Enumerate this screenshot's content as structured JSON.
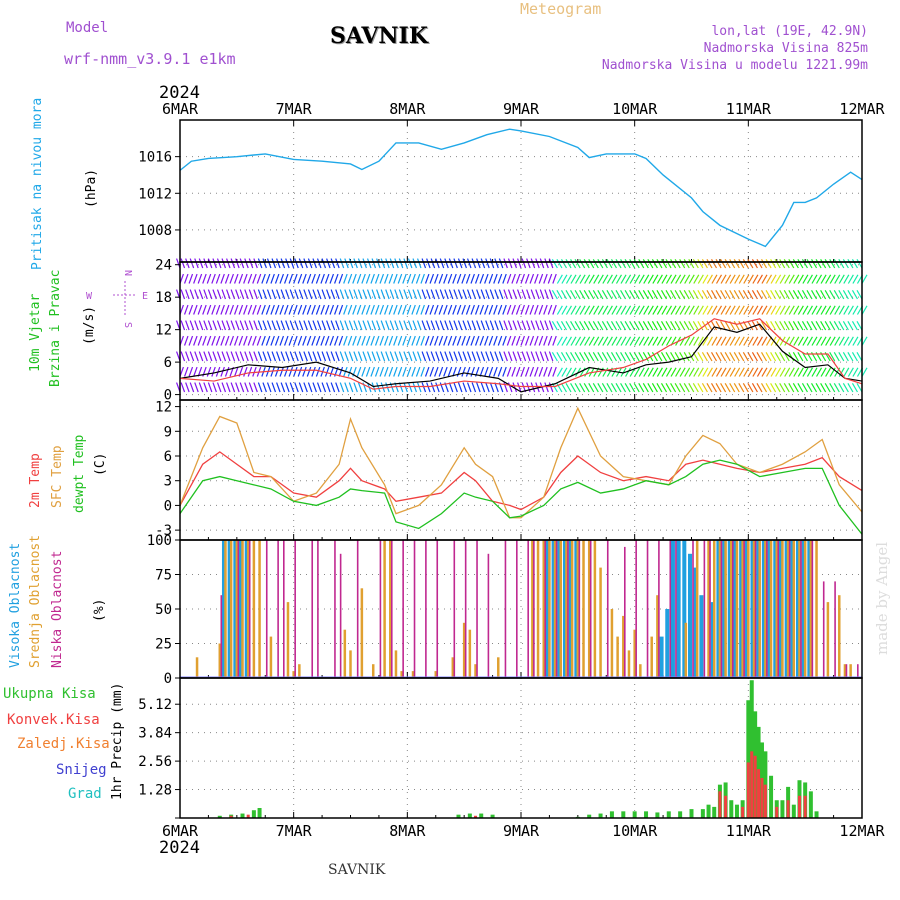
{
  "header": {
    "model_label": "Model",
    "model_name": "wrf-nmm_v3.9.1 e1km",
    "title": "SAVNIK",
    "meteogram": "Meteogram",
    "lonlat": "lon,lat (19E, 42.9N)",
    "elevation": "Nadmorska Visina 825m",
    "model_elevation": "Nadmorska Visina u modelu 1221.99m",
    "year_top": "2024",
    "year_bottom": "2024",
    "footer": "SAVNIK",
    "watermark": "made by Angel"
  },
  "colors": {
    "pressure": "#20a8e8",
    "temp2m": "#f04040",
    "sfctemp": "#e0a040",
    "dewpt": "#20c020",
    "high_cloud": "#20a0e0",
    "mid_cloud": "#e0a030",
    "low_cloud": "#c02890",
    "total_precip": "#30c030",
    "conv_precip": "#f04040",
    "frz_precip": "#f08030",
    "snow": "#4040d0",
    "graupel": "#20c0c0"
  },
  "chart_data": [
    {
      "type": "line",
      "panel": "pressure",
      "ylabel_left": "Pritisak na nivou mora",
      "ylabel_unit": "(hPa)",
      "x_ticks": [
        "6MAR",
        "7MAR",
        "8MAR",
        "9MAR",
        "10MAR",
        "11MAR",
        "12MAR"
      ],
      "y_ticks": [
        1008,
        1012,
        1016
      ],
      "ylim": [
        1004.5,
        1020
      ],
      "x": [
        0,
        0.1,
        0.25,
        0.5,
        0.75,
        1.0,
        1.25,
        1.5,
        1.6,
        1.75,
        1.9,
        2.1,
        2.3,
        2.5,
        2.7,
        2.9,
        3.0,
        3.25,
        3.5,
        3.6,
        3.75,
        4.0,
        4.1,
        4.25,
        4.5,
        4.6,
        4.75,
        5.0,
        5.15,
        5.3,
        5.4,
        5.5,
        5.6,
        5.75,
        5.9,
        6.0
      ],
      "y": [
        1014.5,
        1015.5,
        1015.8,
        1016.0,
        1016.3,
        1015.7,
        1015.5,
        1015.2,
        1014.6,
        1015.5,
        1017.5,
        1017.5,
        1016.8,
        1017.5,
        1018.4,
        1019.0,
        1018.8,
        1018.2,
        1017.0,
        1015.9,
        1016.3,
        1016.3,
        1015.8,
        1014.0,
        1011.5,
        1010.0,
        1008.5,
        1007.0,
        1006.2,
        1008.5,
        1011.0,
        1011.0,
        1011.5,
        1013.0,
        1014.3,
        1013.5
      ]
    },
    {
      "type": "line",
      "panel": "wind",
      "ylabel_left": "10m Vjetar Brzina i Pravac",
      "ylabel_unit": "(m/s)",
      "compass": [
        "N",
        "E",
        "S",
        "W"
      ],
      "y_ticks": [
        0,
        6,
        12,
        18,
        24
      ],
      "ylim": [
        -1,
        24.5
      ],
      "series": [
        {
          "name": "speed",
          "x": [
            0,
            0.3,
            0.6,
            0.9,
            1.2,
            1.5,
            1.7,
            1.9,
            2.2,
            2.5,
            2.8,
            3.0,
            3.3,
            3.6,
            3.9,
            4.1,
            4.3,
            4.5,
            4.7,
            4.9,
            5.1,
            5.3,
            5.5,
            5.7,
            5.85,
            6.0
          ],
          "values": [
            3.0,
            4.0,
            5.5,
            5.0,
            6.0,
            4.0,
            1.5,
            2.0,
            2.5,
            4.0,
            3.0,
            0.5,
            2.0,
            5.0,
            4.0,
            5.5,
            6.0,
            7.0,
            12.5,
            11.5,
            13.0,
            8.0,
            5.0,
            5.5,
            3.0,
            2.5
          ]
        },
        {
          "name": "gust",
          "x": [
            0,
            0.3,
            0.6,
            0.9,
            1.2,
            1.5,
            1.7,
            1.9,
            2.2,
            2.5,
            2.8,
            3.0,
            3.3,
            3.6,
            3.9,
            4.1,
            4.3,
            4.5,
            4.7,
            4.9,
            5.1,
            5.3,
            5.5,
            5.7,
            5.85,
            6.0
          ],
          "values": [
            3.0,
            2.5,
            4.0,
            4.5,
            4.5,
            3.0,
            1.0,
            1.5,
            1.5,
            2.5,
            2.0,
            1.5,
            1.5,
            4.0,
            5.0,
            6.5,
            9.0,
            11.0,
            14.0,
            13.0,
            14.0,
            10.0,
            7.5,
            7.5,
            3.0,
            2.0
          ]
        }
      ]
    },
    {
      "type": "line",
      "panel": "temperature",
      "ylabel_left": [
        "2m Temp",
        "SFC Temp",
        "dewpt Temp"
      ],
      "ylabel_unit": "(C)",
      "y_ticks": [
        -3,
        0,
        3,
        6,
        9,
        12
      ],
      "ylim": [
        -4.2,
        12.8
      ],
      "x": [
        0,
        0.2,
        0.35,
        0.5,
        0.65,
        0.8,
        1.0,
        1.2,
        1.4,
        1.5,
        1.6,
        1.8,
        1.9,
        2.1,
        2.3,
        2.5,
        2.6,
        2.75,
        2.9,
        3.0,
        3.2,
        3.35,
        3.5,
        3.7,
        3.9,
        4.1,
        4.3,
        4.45,
        4.6,
        4.75,
        4.9,
        5.1,
        5.3,
        5.5,
        5.65,
        5.8,
        6.0
      ],
      "series": [
        {
          "name": "2m Temp",
          "values": [
            0.0,
            5.0,
            6.5,
            5.0,
            3.5,
            3.5,
            1.5,
            1.0,
            3.0,
            4.5,
            3.0,
            2.0,
            0.5,
            1.0,
            1.5,
            4.0,
            3.0,
            0.5,
            0.0,
            -0.5,
            1.0,
            4.0,
            6.0,
            4.0,
            3.0,
            3.5,
            3.0,
            5.0,
            5.5,
            5.0,
            4.5,
            4.0,
            4.5,
            5.0,
            5.8,
            3.5,
            1.8
          ]
        },
        {
          "name": "SFC Temp",
          "values": [
            0.0,
            7.0,
            10.8,
            10.0,
            4.0,
            3.5,
            0.5,
            1.5,
            5.0,
            10.5,
            7.0,
            2.5,
            -1.0,
            0.0,
            2.5,
            7.0,
            5.0,
            3.5,
            -1.5,
            -1.5,
            1.0,
            7.0,
            11.8,
            6.0,
            3.5,
            3.0,
            2.5,
            6.0,
            8.5,
            7.5,
            5.0,
            4.0,
            5.0,
            6.5,
            8.0,
            2.5,
            -0.8
          ]
        },
        {
          "name": "dewpt Temp",
          "values": [
            -1.0,
            3.0,
            3.5,
            3.0,
            2.5,
            2.0,
            0.5,
            0.0,
            1.0,
            2.0,
            1.8,
            1.5,
            -2.0,
            -2.8,
            -1.0,
            1.5,
            1.0,
            0.5,
            -1.5,
            -1.3,
            0.0,
            2.0,
            2.8,
            1.5,
            2.0,
            3.0,
            2.5,
            3.5,
            5.0,
            5.5,
            5.0,
            3.5,
            4.0,
            4.5,
            4.5,
            0.0,
            -3.5
          ]
        }
      ]
    },
    {
      "type": "bar",
      "panel": "clouds",
      "ylabel_left": [
        "Visoka Oblacnost",
        "Srednja Oblacnost",
        "Niska Oblacnost"
      ],
      "ylabel_unit": "(%)",
      "y_ticks": [
        0,
        25,
        50,
        75,
        100
      ],
      "ylim": [
        0,
        100
      ],
      "series": [
        {
          "name": "Visoka Oblacnost",
          "x": [
            0.4,
            0.45,
            0.5,
            0.55,
            0.6,
            3.25,
            3.3,
            3.35,
            3.4,
            3.45,
            3.5,
            4.25,
            4.3,
            4.35,
            4.4,
            4.45,
            4.5,
            4.55,
            4.6,
            4.7,
            4.75,
            4.8,
            4.85,
            4.9,
            4.95,
            5.0,
            5.05,
            5.1,
            5.15,
            5.2,
            5.25,
            5.3,
            5.35,
            5.4,
            5.45,
            5.5,
            5.55
          ],
          "values": [
            100,
            100,
            100,
            100,
            100,
            100,
            100,
            100,
            100,
            100,
            100,
            30,
            50,
            100,
            100,
            100,
            90,
            80,
            60,
            55,
            100,
            100,
            100,
            100,
            100,
            100,
            100,
            100,
            100,
            100,
            100,
            100,
            100,
            100,
            100,
            100,
            100
          ]
        },
        {
          "name": "Srednja Oblacnost",
          "x": [
            0.15,
            0.35,
            0.4,
            0.45,
            0.5,
            0.55,
            0.6,
            0.65,
            0.7,
            0.8,
            0.95,
            1.0,
            1.05,
            1.45,
            1.5,
            1.6,
            1.7,
            1.8,
            1.85,
            1.9,
            1.95,
            2.05,
            2.25,
            2.4,
            2.5,
            2.55,
            2.6,
            2.8,
            3.1,
            3.15,
            3.2,
            3.25,
            3.3,
            3.35,
            3.4,
            3.45,
            3.5,
            3.55,
            3.6,
            3.65,
            3.7,
            3.8,
            3.85,
            3.9,
            3.95,
            4.0,
            4.05,
            4.15,
            4.2,
            4.45,
            4.55,
            4.65,
            4.7,
            4.75,
            4.8,
            4.85,
            4.9,
            4.95,
            5.0,
            5.05,
            5.1,
            5.15,
            5.2,
            5.25,
            5.3,
            5.35,
            5.4,
            5.45,
            5.5,
            5.55,
            5.6,
            5.7,
            5.8,
            5.85,
            5.9
          ],
          "values": [
            15,
            25,
            100,
            100,
            100,
            100,
            100,
            100,
            100,
            30,
            55,
            5,
            10,
            35,
            20,
            65,
            10,
            100,
            100,
            20,
            5,
            5,
            5,
            15,
            40,
            35,
            10,
            15,
            100,
            100,
            100,
            100,
            100,
            100,
            100,
            100,
            100,
            100,
            100,
            100,
            80,
            50,
            30,
            45,
            20,
            35,
            10,
            30,
            60,
            40,
            100,
            100,
            100,
            100,
            100,
            100,
            100,
            100,
            100,
            100,
            100,
            100,
            100,
            100,
            100,
            100,
            100,
            100,
            100,
            100,
            100,
            55,
            60,
            10,
            10
          ]
        },
        {
          "name": "Niska Oblacnost",
          "x": [
            0.35,
            0.5,
            0.6,
            0.75,
            0.85,
            0.9,
            1.0,
            1.15,
            1.2,
            1.35,
            1.4,
            1.55,
            1.75,
            1.85,
            1.95,
            2.05,
            2.15,
            2.25,
            2.4,
            2.5,
            2.6,
            2.7,
            2.85,
            2.95,
            3.05,
            3.1,
            3.2,
            3.3,
            3.4,
            3.5,
            3.6,
            3.75,
            3.9,
            4.0,
            4.1,
            4.2,
            4.3,
            4.35,
            4.5,
            4.6,
            4.65,
            4.75,
            4.85,
            4.95,
            5.05,
            5.15,
            5.25,
            5.35,
            5.45,
            5.55,
            5.65,
            5.75,
            5.85,
            5.95
          ],
          "values": [
            60,
            100,
            100,
            100,
            100,
            100,
            100,
            100,
            100,
            100,
            90,
            100,
            100,
            100,
            100,
            100,
            100,
            100,
            100,
            100,
            100,
            90,
            100,
            100,
            100,
            100,
            100,
            100,
            100,
            100,
            100,
            100,
            95,
            100,
            100,
            100,
            100,
            100,
            100,
            100,
            100,
            100,
            100,
            100,
            100,
            100,
            100,
            100,
            100,
            100,
            70,
            70,
            10,
            10
          ]
        }
      ]
    },
    {
      "type": "bar",
      "panel": "precipitation",
      "ylabel_left": [
        "Ukupna Kisa",
        "Konvek.Kisa",
        "Zaledj.Kisa",
        "Snijeg",
        "Grad"
      ],
      "ylabel_unit": "1hr Precip (mm)",
      "y_ticks": [
        0,
        1.28,
        2.56,
        3.84,
        5.12
      ],
      "ylim": [
        0,
        6.3
      ],
      "series": [
        {
          "name": "Ukupna Kisa",
          "x": [
            0.35,
            0.45,
            0.55,
            0.65,
            0.7,
            2.45,
            2.55,
            2.65,
            2.75,
            3.5,
            3.6,
            3.7,
            3.8,
            3.9,
            4.0,
            4.1,
            4.2,
            4.3,
            4.4,
            4.5,
            4.6,
            4.65,
            4.7,
            4.75,
            4.8,
            4.85,
            4.9,
            4.95,
            5.0,
            5.03,
            5.06,
            5.09,
            5.12,
            5.15,
            5.2,
            5.25,
            5.3,
            5.35,
            5.4,
            5.45,
            5.5,
            5.55,
            5.6
          ],
          "values": [
            0.1,
            0.15,
            0.2,
            0.35,
            0.45,
            0.15,
            0.2,
            0.2,
            0.15,
            0.05,
            0.15,
            0.2,
            0.3,
            0.3,
            0.3,
            0.3,
            0.25,
            0.3,
            0.3,
            0.4,
            0.4,
            0.6,
            0.5,
            1.5,
            1.6,
            0.8,
            0.6,
            0.8,
            5.3,
            6.2,
            4.8,
            4.1,
            3.4,
            3.0,
            1.9,
            0.8,
            0.8,
            1.4,
            0.6,
            1.7,
            1.6,
            1.2,
            0.3
          ]
        },
        {
          "name": "Konvek.Kisa",
          "x": [
            0.45,
            0.6,
            2.6,
            4.75,
            4.8,
            4.95,
            5.0,
            5.03,
            5.06,
            5.09,
            5.12,
            5.15,
            5.25,
            5.35,
            5.45,
            5.5
          ],
          "values": [
            0.1,
            0.15,
            0.1,
            1.2,
            1.0,
            0.5,
            2.5,
            3.0,
            2.8,
            2.2,
            1.8,
            1.5,
            0.5,
            0.8,
            1.0,
            1.0
          ]
        }
      ]
    }
  ]
}
